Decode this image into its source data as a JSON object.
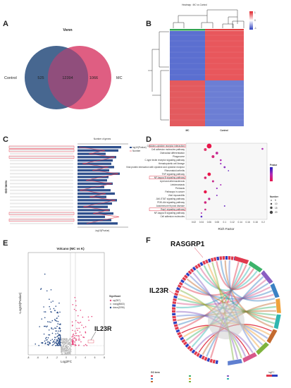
{
  "panels": {
    "a": {
      "letter": "A",
      "title": "Venn",
      "left_label": "Control",
      "right_label": "MC",
      "left_only": "525",
      "overlap": "12394",
      "right_only": "1066",
      "left_color": "#3d5f8a",
      "right_color": "#d9426c"
    },
    "b": {
      "letter": "B",
      "title": "Heatmap : MC vs Control",
      "col_label_1": "MC",
      "col_label_2": "Control",
      "scale_ticks": [
        "1",
        "0",
        "-1"
      ],
      "scale_colors": [
        "#e0242b",
        "#ffffff",
        "#2d3fbf"
      ]
    },
    "c": {
      "letter": "C",
      "y_title": "GO term",
      "top_axis_title": "Number of genes",
      "bottom_axis_title": "-log10(Pvalue)",
      "legend": [
        "log10(Pvalue)",
        "Number"
      ],
      "bar_color": "#2e4f8c",
      "line_color": "#e03a4e"
    },
    "d": {
      "letter": "D",
      "x_title": "Rich Factor",
      "legend_pvalue_title": "Pvalue",
      "legend_number_title": "Number",
      "legend_number_values": [
        "5",
        "10",
        "15",
        "20"
      ],
      "terms": [
        "Cytokine-cytokine receptor interaction",
        "Cell adhesion molecules pathway",
        "Osteoclast differentiation",
        "Phagosome",
        "C-type lectin receptor signaling pathway",
        "Hematopoietic cell lineage",
        "Viral protein interaction with cytokine and cytokine receptor",
        "Rheumatoid arthritis",
        "TNF signaling pathway",
        "NF-kappa B signaling pathway",
        "Lipid and atherosclerosis",
        "Leishmaniasis",
        "Pertussis",
        "Pathways in cancer",
        "Viral myocarditis",
        "JAK-STAT signaling pathway",
        "PI3K-Akt signaling pathway",
        "Autoimmune thyroid disease",
        "Rap1 signaling pathway",
        "NF-kappa B signaling pathway",
        "Cell adhesion molecules"
      ],
      "x_ticks": [
        "0.02",
        "0.04",
        "0.06",
        "0.08",
        "0.1",
        "0.12",
        "0.14",
        "0.16",
        "0.18",
        "0.2"
      ]
    },
    "e": {
      "letter": "E",
      "title": "Volcano  (MC vs K)",
      "x_title": "Log2FC",
      "y_title": "-Log10(Pvalue)",
      "legend_title": "Significant",
      "legend_items": [
        "up(357)",
        "nosig(8663)",
        "down(2096)"
      ],
      "legend_colors": [
        "#e8467c",
        "#bbbbbb",
        "#2c4f8a"
      ],
      "callout": "IL23R",
      "x_ticks": [
        "-8",
        "-6",
        "-4",
        "-2",
        "0",
        "2",
        "4",
        "6",
        "8"
      ]
    },
    "f": {
      "letter": "F",
      "callout_top": "RASGRP1",
      "callout_left": "IL23R",
      "legend_title": "GO term",
      "logfc_label": "logFC"
    }
  }
}
